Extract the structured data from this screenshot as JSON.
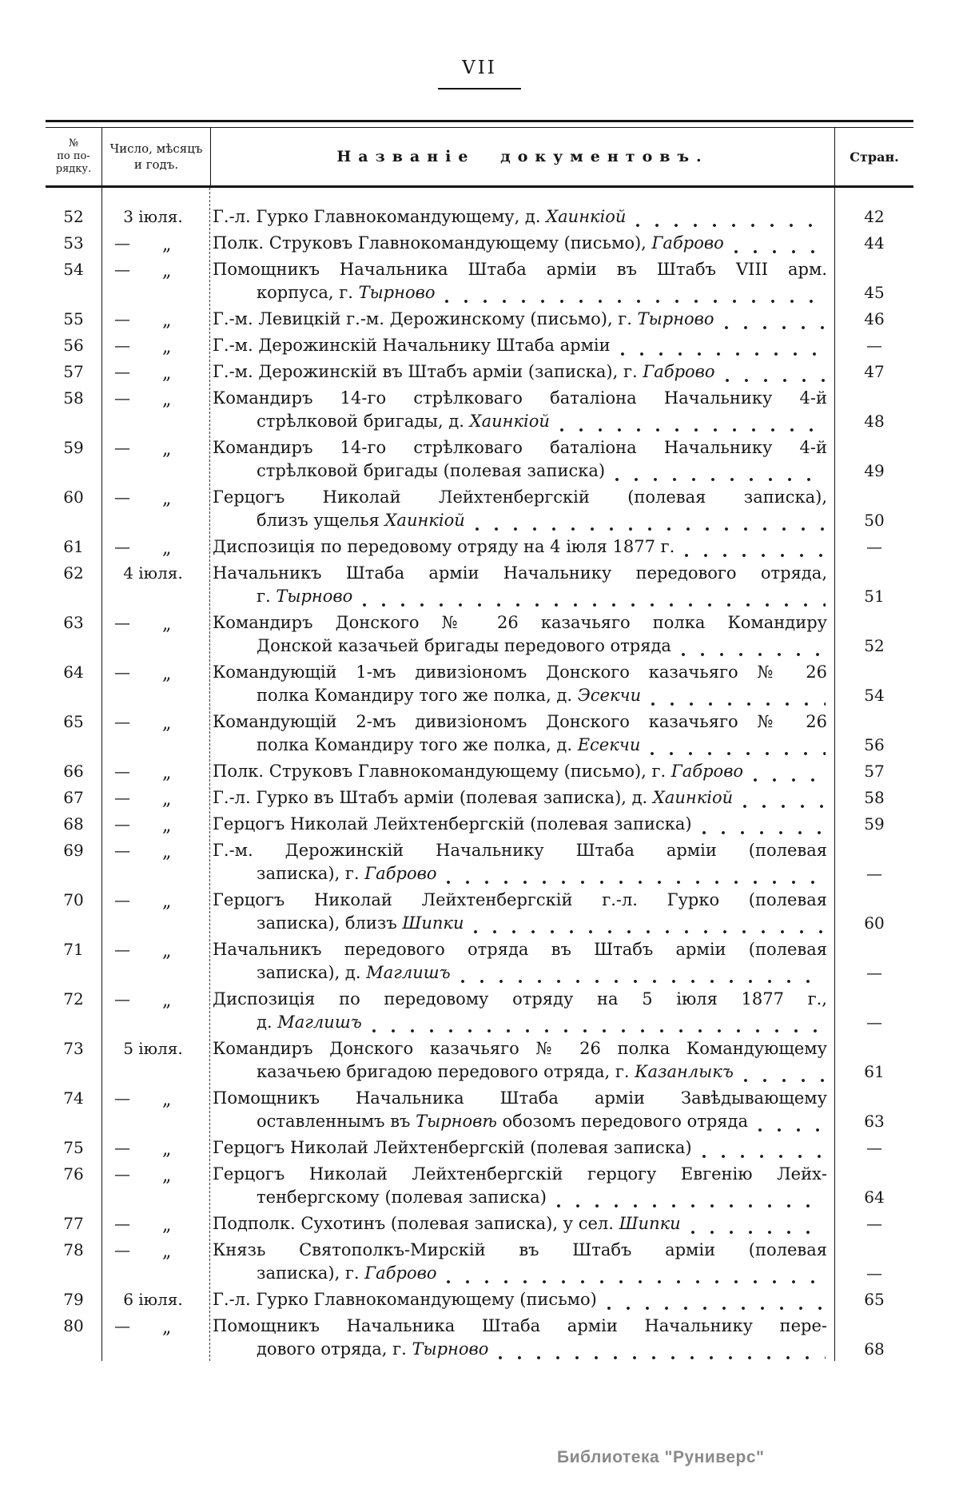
{
  "page": {
    "folio": "VII",
    "watermark": "Библиотека \"Руниверс\""
  },
  "table": {
    "headers": {
      "col1": [
        "№",
        "по по-",
        "рядку."
      ],
      "col2": [
        "Число, мѣсяцъ",
        "и годъ."
      ],
      "col3": "Названіе документовъ.",
      "col4": "Стран."
    },
    "dash": "—",
    "ditto_mark": "„",
    "rows": [
      {
        "num": "52",
        "date": "3 іюля.",
        "ditto": false,
        "page": "42",
        "lines": [
          {
            "text": "Г.-л. Гурко Главнокомандующему, д. *Хаинкіой*",
            "leader": true
          }
        ]
      },
      {
        "num": "53",
        "date": "",
        "ditto": true,
        "page": "44",
        "lines": [
          {
            "text": "Полк. Струковъ Главнокомандующему (письмо), *Габрово*",
            "leader": true
          }
        ]
      },
      {
        "num": "54",
        "date": "",
        "ditto": true,
        "page": "45",
        "lines": [
          {
            "text": "Помощникъ Начальника Штаба арміи въ Штабъ VIII арм.",
            "justify": true
          },
          {
            "text": "корпуса, г. *Тырново*",
            "indent": true,
            "leader": true
          }
        ]
      },
      {
        "num": "55",
        "date": "",
        "ditto": true,
        "page": "46",
        "lines": [
          {
            "text": "Г.-м. Левицкій г.-м. Дерожинскому (письмо), г. *Тырново*",
            "leader": true
          }
        ]
      },
      {
        "num": "56",
        "date": "",
        "ditto": true,
        "page": "—",
        "lines": [
          {
            "text": "Г.-м. Дерожинскій Начальнику Штаба арміи",
            "leader": true
          }
        ]
      },
      {
        "num": "57",
        "date": "",
        "ditto": true,
        "page": "47",
        "lines": [
          {
            "text": "Г.-м. Дерожинскій въ Штабъ арміи (записка), г. *Габрово*",
            "leader": true
          }
        ]
      },
      {
        "num": "58",
        "date": "",
        "ditto": true,
        "page": "48",
        "lines": [
          {
            "text": "Командиръ 14-го стрѣлковаго баталіона Начальнику 4-й",
            "justify": true
          },
          {
            "text": "стрѣлковой бригады, д. *Хаинкіой*",
            "indent": true,
            "leader": true
          }
        ]
      },
      {
        "num": "59",
        "date": "",
        "ditto": true,
        "page": "49",
        "lines": [
          {
            "text": "Командиръ 14-го стрѣлковаго баталіона Начальнику 4-й",
            "justify": true
          },
          {
            "text": "стрѣлковой бригады (полевая записка)",
            "indent": true,
            "leader": true
          }
        ]
      },
      {
        "num": "60",
        "date": "",
        "ditto": true,
        "page": "50",
        "lines": [
          {
            "text": "Герцогъ Николай Лейхтенбергскій (полевая записка),",
            "justify": true
          },
          {
            "text": "близъ ущелья *Хаинкіой*",
            "indent": true,
            "leader": true
          }
        ]
      },
      {
        "num": "61",
        "date": "",
        "ditto": true,
        "page": "—",
        "lines": [
          {
            "text": "Диспозиція по передовому отряду на 4 іюля 1877 г.",
            "leader": true
          }
        ]
      },
      {
        "num": "62",
        "date": "4 іюля.",
        "ditto": false,
        "page": "51",
        "lines": [
          {
            "text": "Начальникъ Штаба арміи Начальнику передового отряда,",
            "justify": true
          },
          {
            "text": "г. *Тырново*",
            "indent": true,
            "leader": true
          }
        ]
      },
      {
        "num": "63",
        "date": "",
        "ditto": true,
        "page": "52",
        "lines": [
          {
            "text": "Командиръ Донского № 26 казачьяго полка Командиру",
            "justify": true
          },
          {
            "text": "Донской казачьей бригады передового отряда",
            "indent": true,
            "leader": true
          }
        ]
      },
      {
        "num": "64",
        "date": "",
        "ditto": true,
        "page": "54",
        "lines": [
          {
            "text": "Командующій 1-мъ дивизіономъ Донского казачьяго № 26",
            "justify": true
          },
          {
            "text": "полка Командиру того же полка, д. *Эсекчи*",
            "indent": true,
            "leader": true
          }
        ]
      },
      {
        "num": "65",
        "date": "",
        "ditto": true,
        "page": "56",
        "lines": [
          {
            "text": "Командующій 2-мъ дивизіономъ Донского казачьяго № 26",
            "justify": true
          },
          {
            "text": "полка Командиру того же полка, д. *Есекчи*",
            "indent": true,
            "leader": true
          }
        ]
      },
      {
        "num": "66",
        "date": "",
        "ditto": true,
        "page": "57",
        "lines": [
          {
            "text": "Полк. Струковъ Главнокомандующему (письмо), г. *Габрово*",
            "leader": true
          }
        ]
      },
      {
        "num": "67",
        "date": "",
        "ditto": true,
        "page": "58",
        "lines": [
          {
            "text": "Г.-л. Гурко въ Штабъ арміи (полевая записка), д. *Хаинкіой*",
            "leader": true
          }
        ]
      },
      {
        "num": "68",
        "date": "",
        "ditto": true,
        "page": "59",
        "lines": [
          {
            "text": "Герцогъ Николай Лейхтенбергскій (полевая записка)",
            "leader": true
          }
        ]
      },
      {
        "num": "69",
        "date": "",
        "ditto": true,
        "page": "—",
        "lines": [
          {
            "text": "Г.-м. Дерожинскій Начальнику Штаба арміи (полевая",
            "justify": true
          },
          {
            "text": "записка), г. *Габрово*",
            "indent": true,
            "leader": true
          }
        ]
      },
      {
        "num": "70",
        "date": "",
        "ditto": true,
        "page": "60",
        "lines": [
          {
            "text": "Герцогъ Николай Лейхтенбергскій г.-л. Гурко (полевая",
            "justify": true
          },
          {
            "text": "записка), близъ *Шипки*",
            "indent": true,
            "leader": true
          }
        ]
      },
      {
        "num": "71",
        "date": "",
        "ditto": true,
        "page": "—",
        "lines": [
          {
            "text": "Начальникъ передового отряда въ Штабъ арміи (полевая",
            "justify": true
          },
          {
            "text": "записка), д. *Маглишъ*",
            "indent": true,
            "leader": true
          }
        ]
      },
      {
        "num": "72",
        "date": "",
        "ditto": true,
        "page": "—",
        "lines": [
          {
            "text": "Диспозиція по передовому отряду на 5 іюля 1877 г.,",
            "justify": true
          },
          {
            "text": "д. *Маглишъ*",
            "indent": true,
            "leader": true
          }
        ]
      },
      {
        "num": "73",
        "date": "5 іюля.",
        "ditto": false,
        "page": "61",
        "lines": [
          {
            "text": "Командиръ Донского казачьяго № 26 полка Командующему",
            "justify": true
          },
          {
            "text": "казачьею бригадою передового отряда, г. *Казанлыкъ*",
            "indent": true,
            "leader": true
          }
        ]
      },
      {
        "num": "74",
        "date": "",
        "ditto": true,
        "page": "63",
        "lines": [
          {
            "text": "Помощникъ Начальника Штаба арміи Завѣдывающему",
            "justify": true
          },
          {
            "text": "оставленнымъ въ *Тырновѣ* обозомъ передового отряда",
            "indent": true,
            "leader": true
          }
        ]
      },
      {
        "num": "75",
        "date": "",
        "ditto": true,
        "page": "—",
        "lines": [
          {
            "text": "Герцогъ Николай Лейхтенбергскій (полевая записка)",
            "leader": true
          }
        ]
      },
      {
        "num": "76",
        "date": "",
        "ditto": true,
        "page": "64",
        "lines": [
          {
            "text": "Герцогъ Николай Лейхтенбергскій герцогу Евгенію Лейх-",
            "justify": true
          },
          {
            "text": "тенбергскому (полевая записка)",
            "indent": true,
            "leader": true
          }
        ]
      },
      {
        "num": "77",
        "date": "",
        "ditto": true,
        "page": "—",
        "lines": [
          {
            "text": "Подполк. Сухотинъ (полевая записка), у сел. *Шипки*",
            "leader": true
          }
        ]
      },
      {
        "num": "78",
        "date": "",
        "ditto": true,
        "page": "—",
        "lines": [
          {
            "text": "Князь Святополкъ-Мирскій въ Штабъ арміи (полевая",
            "justify": true
          },
          {
            "text": "записка), г. *Габрово*",
            "indent": true,
            "leader": true
          }
        ]
      },
      {
        "num": "79",
        "date": "6 іюля.",
        "ditto": false,
        "page": "65",
        "lines": [
          {
            "text": "Г.-л. Гурко Главнокомандующему (письмо)",
            "leader": true
          }
        ]
      },
      {
        "num": "80",
        "date": "",
        "ditto": true,
        "page": "68",
        "lines": [
          {
            "text": "Помощникъ Начальника Штаба арміи Начальнику пере-",
            "justify": true
          },
          {
            "text": "дового отряда, г. *Тырново*",
            "indent": true,
            "leader": true
          }
        ]
      }
    ]
  }
}
